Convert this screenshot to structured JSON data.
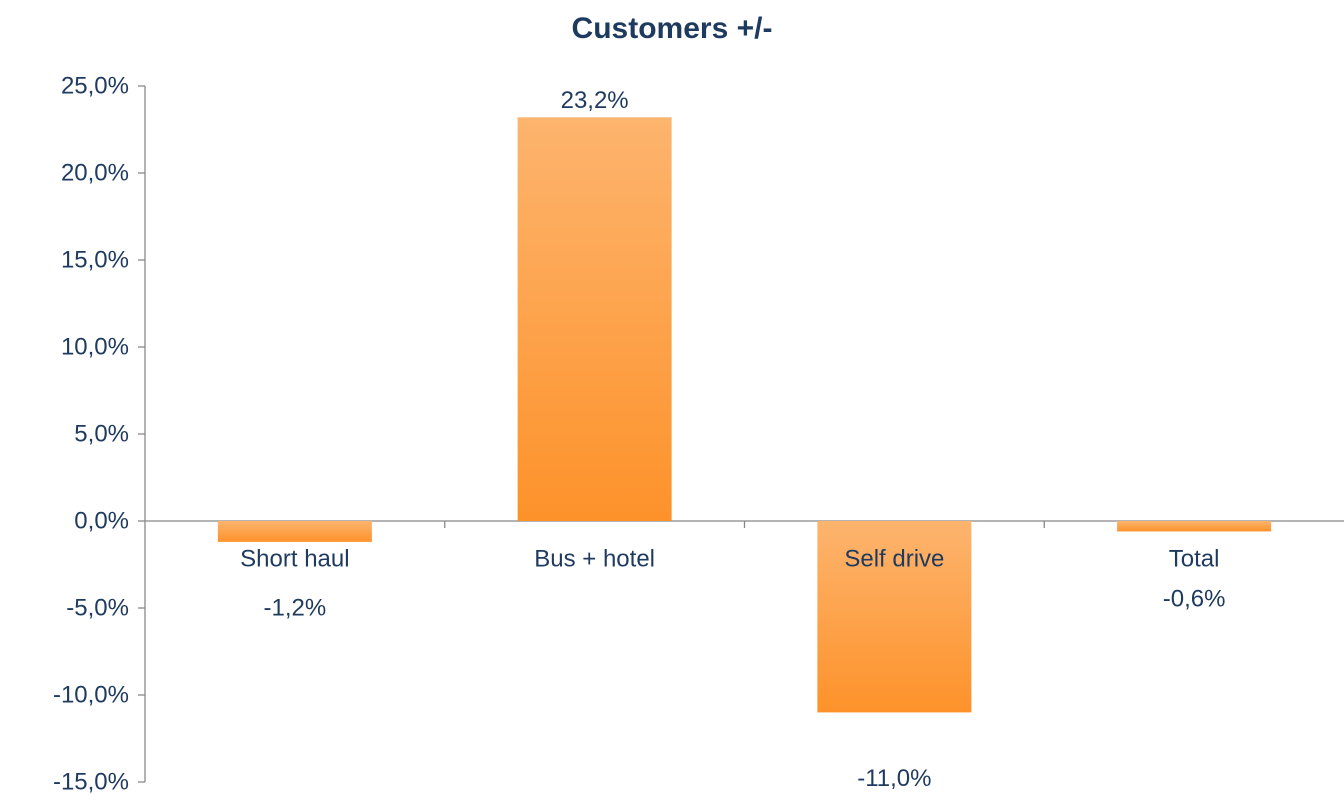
{
  "chart_data": {
    "type": "bar",
    "title": "Customers +/-",
    "categories": [
      "Short haul",
      "Bus + hotel",
      "Self drive",
      "Total"
    ],
    "values": [
      -1.2,
      23.2,
      -11.0,
      -0.6
    ],
    "data_labels": [
      "-1,2%",
      "23,2%",
      "-11,0%",
      "-0,6%"
    ],
    "xlabel": "",
    "ylabel": "",
    "ylim": [
      -15,
      25
    ],
    "yticks": [
      25,
      20,
      15,
      10,
      5,
      0,
      -5,
      -10,
      -15
    ],
    "ytick_labels": [
      "25,0%",
      "20,0%",
      "15,0%",
      "10,0%",
      "5,0%",
      "0,0%",
      "-5,0%",
      "-10,0%",
      "-15,0%"
    ],
    "grid": false,
    "legend": "none",
    "colors": {
      "bar_light": "#fdb46e",
      "bar_dark": "#fd922a",
      "axis": "#888888",
      "text": "#1f3a5f"
    }
  }
}
